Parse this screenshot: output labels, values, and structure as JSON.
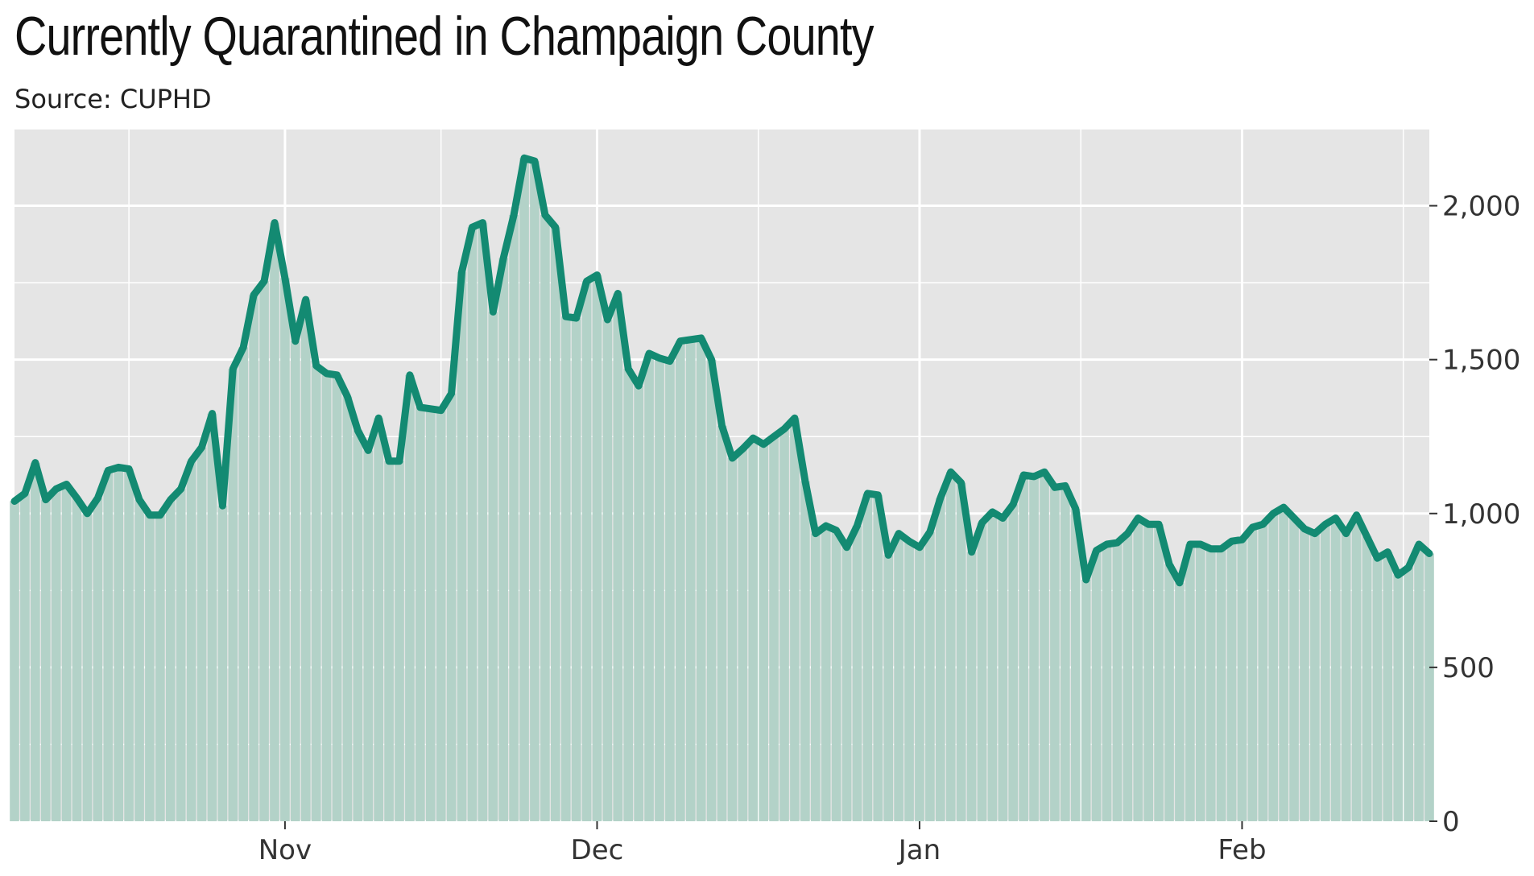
{
  "title": "Currently Quarantined in Champaign County",
  "subtitle": "Source: CUPHD",
  "colors": {
    "line": "#138a72",
    "fill": "#b3d2c8",
    "panel": "#e5e5e5",
    "grid": "#ffffff"
  },
  "chart_data": {
    "type": "area",
    "title": "Currently Quarantined in Champaign County",
    "subtitle": "Source: CUPHD",
    "xlabel": "",
    "ylabel": "",
    "y_axis_position": "right",
    "grid": true,
    "legend": "none",
    "start_date": "2020-10-06",
    "xlim": [
      "2020-10-06",
      "2021-02-19"
    ],
    "ylim": [
      0,
      2250
    ],
    "y_ticks": [
      0,
      500,
      1000,
      1500,
      2000
    ],
    "y_tick_labels": [
      "0",
      "500",
      "1,000",
      "1,500",
      "2,000"
    ],
    "x_ticks": [
      {
        "date": "2020-11-01",
        "label": "Nov"
      },
      {
        "date": "2020-12-01",
        "label": "Dec"
      },
      {
        "date": "2021-01-01",
        "label": "Jan"
      },
      {
        "date": "2021-02-01",
        "label": "Feb"
      }
    ],
    "series": [
      {
        "values": [
          1040,
          1065,
          1165,
          1045,
          1080,
          1095,
          1050,
          1000,
          1050,
          1140,
          1150,
          1145,
          1045,
          995,
          995,
          1045,
          1080,
          1170,
          1215,
          1325,
          1025,
          1470,
          1540,
          1710,
          1755,
          1945,
          1765,
          1560,
          1695,
          1480,
          1455,
          1450,
          1380,
          1270,
          1205,
          1310,
          1170,
          1170,
          1450,
          1345,
          1340,
          1335,
          1390,
          1785,
          1930,
          1945,
          1655,
          1830,
          1970,
          2155,
          2145,
          1970,
          1930,
          1640,
          1635,
          1755,
          1775,
          1630,
          1715,
          1470,
          1415,
          1520,
          1505,
          1495,
          1560,
          1565,
          1570,
          1500,
          1285,
          1180,
          1210,
          1245,
          1225,
          1250,
          1275,
          1310,
          1105,
          935,
          960,
          945,
          890,
          960,
          1065,
          1060,
          865,
          935,
          910,
          890,
          940,
          1050,
          1135,
          1100,
          875,
          970,
          1005,
          985,
          1030,
          1125,
          1120,
          1135,
          1085,
          1090,
          1015,
          785,
          880,
          900,
          905,
          935,
          985,
          965,
          965,
          835,
          775,
          900,
          900,
          885,
          885,
          910,
          915,
          955,
          965,
          1000,
          1020,
          985,
          950,
          935,
          965,
          985,
          935,
          995,
          925,
          855,
          875,
          800,
          825,
          900,
          870
        ]
      }
    ]
  }
}
